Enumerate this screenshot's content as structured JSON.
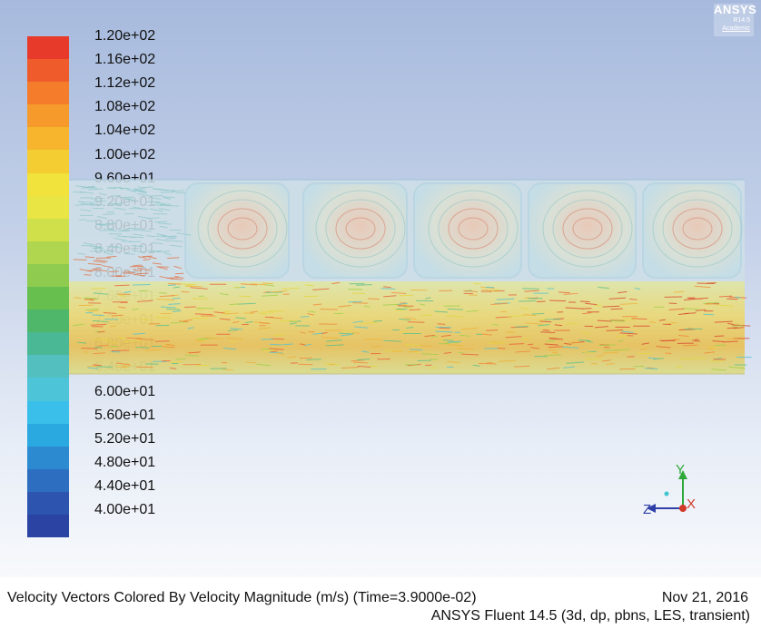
{
  "logo": {
    "brand": "ANSYS",
    "release": "R14.5",
    "edition": "Academic"
  },
  "colorbar": {
    "colors": [
      "#e83a2b",
      "#ef5b2b",
      "#f47c2b",
      "#f69b2b",
      "#f6b52c",
      "#f4cd32",
      "#f1e23c",
      "#e8e545",
      "#cfe04b",
      "#afd64e",
      "#8ecb4f",
      "#67bf4e",
      "#4fb76a",
      "#4bb895",
      "#53bfbf",
      "#4ec4d9",
      "#39bfe9",
      "#2aa8e0",
      "#2c8ad0",
      "#2e6ec0",
      "#2d55b0",
      "#2b44a3"
    ],
    "labels": [
      "1.20e+02",
      "1.16e+02",
      "1.12e+02",
      "1.08e+02",
      "1.04e+02",
      "1.00e+02",
      "9.60e+01",
      "9.20e+01",
      "8.80e+01",
      "8.40e+01",
      "8.00e+01",
      "7.60e+01",
      "7.20e+01",
      "6.80e+01",
      "6.40e+01",
      "6.00e+01",
      "5.60e+01",
      "5.20e+01",
      "4.80e+01",
      "4.40e+01",
      "4.00e+01"
    ]
  },
  "axes": {
    "y": "Y",
    "z": "Z",
    "x": "X"
  },
  "footer": {
    "title": "Velocity Vectors Colored By Velocity Magnitude (m/s)  (Time=3.9000e-02)",
    "date": "Nov 21, 2016",
    "version": "ANSYS Fluent 14.5 (3d, dp, pbns, LES, transient)"
  }
}
